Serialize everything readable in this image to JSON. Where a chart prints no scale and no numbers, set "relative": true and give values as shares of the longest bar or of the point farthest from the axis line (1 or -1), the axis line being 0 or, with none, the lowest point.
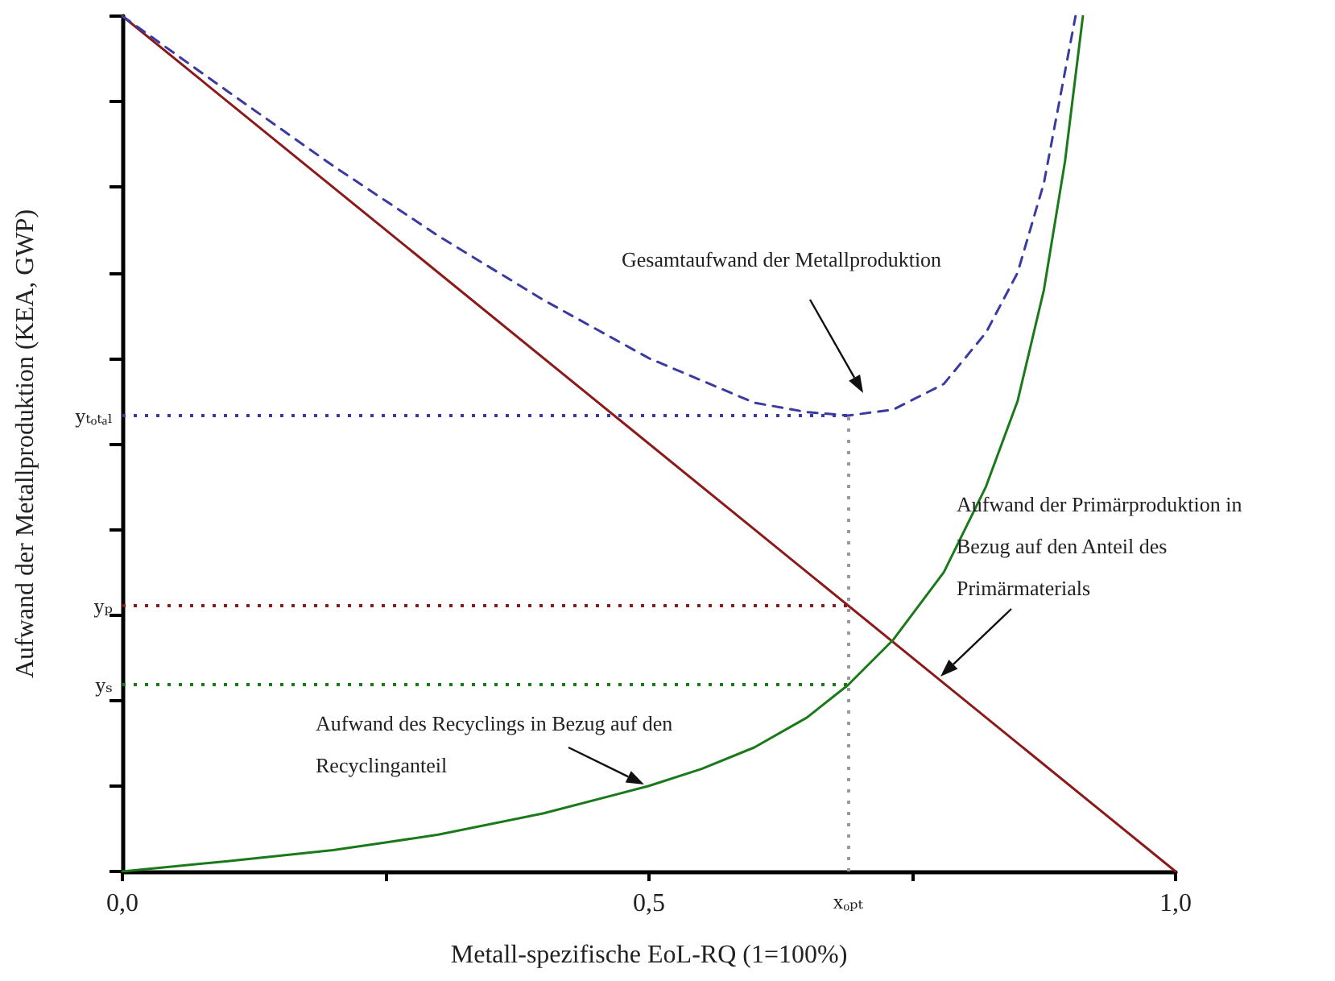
{
  "chart_data": {
    "type": "line",
    "relative": true,
    "xlabel": "Metall-spezifische EoL-RQ (1=100%)",
    "ylabel": "Aufwand der Metallproduktion (KEA, GWP)",
    "xlim": [
      0,
      1
    ],
    "xticks": [
      {
        "value": 0,
        "label": "0,0"
      },
      {
        "value": 0.25,
        "label": null
      },
      {
        "value": 0.5,
        "label": "0,5"
      },
      {
        "value": 0.75,
        "label": null
      },
      {
        "value": 1,
        "label": "1,0"
      }
    ],
    "grid": false,
    "marker": "none",
    "series": [
      {
        "color": "#8b1a1a",
        "line_style": "solid",
        "x": [
          0,
          1
        ],
        "values": [
          1,
          0
        ]
      },
      {
        "color": "#1a7a1a",
        "line_style": "solid",
        "x": [
          0,
          0.1,
          0.2,
          0.25,
          0.3,
          0.4,
          0.5,
          0.55,
          0.6,
          0.65,
          0.689,
          0.732,
          0.78,
          0.82,
          0.85,
          0.875,
          0.895,
          0.912
        ],
        "values": [
          0,
          0.012,
          0.025,
          0.034,
          0.043,
          0.068,
          0.1,
          0.12,
          0.145,
          0.18,
          0.218,
          0.271,
          0.35,
          0.45,
          0.55,
          0.68,
          0.83,
          1
        ]
      },
      {
        "color": "#3a3aa0",
        "line_style": "dashed",
        "x": [
          0,
          0.1,
          0.2,
          0.3,
          0.4,
          0.5,
          0.6,
          0.65,
          0.689,
          0.732,
          0.78,
          0.82,
          0.85,
          0.875,
          0.895,
          0.905
        ],
        "values": [
          1,
          0.912,
          0.825,
          0.743,
          0.668,
          0.6,
          0.548,
          0.537,
          0.533,
          0.54,
          0.57,
          0.63,
          0.7,
          0.805,
          0.935,
          1
        ]
      }
    ],
    "ref_lines": [
      {
        "axis": "y",
        "value": 0.533,
        "label": "yₜₒₜₐₗ",
        "color": "#3a3aa0",
        "line_style": "dotted"
      },
      {
        "axis": "y",
        "value": 0.311,
        "label": "yₚ",
        "color": "#8b1a1a",
        "line_style": "dotted"
      },
      {
        "axis": "y",
        "value": 0.218,
        "label": "yₛ",
        "color": "#1a7a1a",
        "line_style": "dotted"
      },
      {
        "axis": "x",
        "value": 0.689,
        "label": "xₒₚₜ",
        "color": "#999999",
        "line_style": "dotted"
      }
    ],
    "annotations": [
      "Gesamtaufwand der Metallproduktion",
      "Aufwand der Primärproduktion in Bezug auf den Anteil des Primärmaterials",
      "Aufwand des Recyclings in Bezug auf den Recyclinganteil"
    ]
  }
}
